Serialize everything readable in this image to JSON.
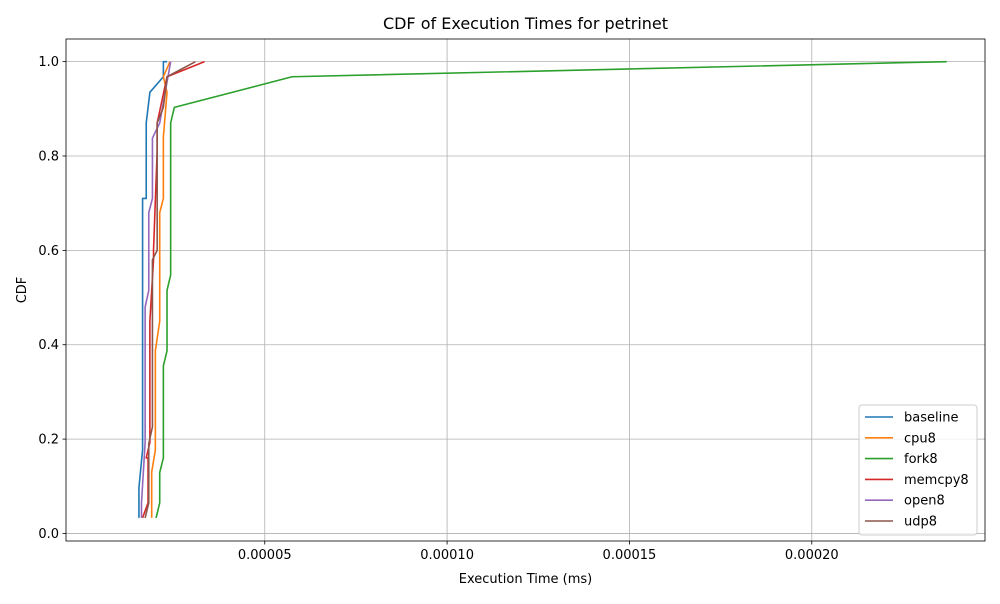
{
  "chart_data": {
    "type": "line",
    "title": "CDF of Execution Times for petrinet",
    "xlabel": "Execution Time (ms)",
    "ylabel": "CDF",
    "xlim": [
      -4.5e-06,
      0.0002475
    ],
    "ylim": [
      -0.016,
      1.048
    ],
    "xticks": [
      5e-05,
      0.0001,
      0.00015,
      0.0002
    ],
    "xtick_labels": [
      "0.00005",
      "0.00010",
      "0.00015",
      "0.00020"
    ],
    "yticks": [
      0.0,
      0.2,
      0.4,
      0.6,
      0.8,
      1.0
    ],
    "ytick_labels": [
      "0.0",
      "0.2",
      "0.4",
      "0.6",
      "0.8",
      "1.0"
    ],
    "grid": true,
    "legend_position": "lower-right",
    "series": [
      {
        "name": "baseline",
        "color": "#1f77b4",
        "x": [
          1.55e-05,
          1.55e-05,
          1.65e-05,
          1.65e-05,
          1.65e-05,
          1.75e-05,
          1.75e-05,
          1.85e-05,
          2.22e-05,
          2.22e-05,
          2.32e-05
        ],
        "y": [
          0.033,
          0.097,
          0.177,
          0.677,
          0.71,
          0.71,
          0.87,
          0.935,
          0.968,
          1.0,
          1.0
        ]
      },
      {
        "name": "cpu8",
        "color": "#ff7f0e",
        "x": [
          1.9e-05,
          1.9e-05,
          2e-05,
          2e-05,
          2.12e-05,
          2.12e-05,
          2.22e-05,
          2.22e-05,
          2.32e-05,
          2.22e-05,
          2.4e-05
        ],
        "y": [
          0.033,
          0.13,
          0.177,
          0.387,
          0.45,
          0.68,
          0.71,
          0.84,
          0.935,
          0.968,
          1.0
        ]
      },
      {
        "name": "fork8",
        "color": "#2ca02c",
        "x": [
          2.02e-05,
          2.12e-05,
          2.12e-05,
          2.22e-05,
          2.22e-05,
          2.32e-05,
          2.32e-05,
          2.42e-05,
          2.42e-05,
          2.52e-05,
          5.75e-05,
          0.000237
        ],
        "y": [
          0.033,
          0.065,
          0.129,
          0.16,
          0.355,
          0.387,
          0.515,
          0.548,
          0.87,
          0.903,
          0.968,
          1.0
        ]
      },
      {
        "name": "memcpy8",
        "color": "#d62728",
        "x": [
          1.65e-05,
          1.8e-05,
          1.8e-05,
          1.75e-05,
          1.85e-05,
          1.85e-05,
          1.95e-05,
          1.95e-05,
          2.05e-05,
          2.05e-05,
          2.32e-05,
          3.35e-05
        ],
        "y": [
          0.033,
          0.065,
          0.16,
          0.16,
          0.193,
          0.45,
          0.58,
          0.6,
          0.81,
          0.87,
          0.968,
          1.0
        ]
      },
      {
        "name": "open8",
        "color": "#9467bd",
        "x": [
          1.62e-05,
          1.62e-05,
          1.72e-05,
          1.72e-05,
          1.82e-05,
          1.82e-05,
          1.92e-05,
          1.92e-05,
          2.12e-05,
          2.42e-05
        ],
        "y": [
          0.033,
          0.065,
          0.193,
          0.48,
          0.515,
          0.68,
          0.71,
          0.838,
          0.87,
          1.0
        ]
      },
      {
        "name": "udp8",
        "color": "#8c564b",
        "x": [
          1.72e-05,
          1.82e-05,
          1.82e-05,
          1.92e-05,
          1.92e-05,
          2.05e-05,
          2.05e-05,
          2.22e-05,
          2.32e-05,
          3.1e-05
        ],
        "y": [
          0.033,
          0.065,
          0.19,
          0.226,
          0.58,
          0.6,
          0.87,
          0.903,
          0.968,
          1.0
        ]
      }
    ]
  }
}
